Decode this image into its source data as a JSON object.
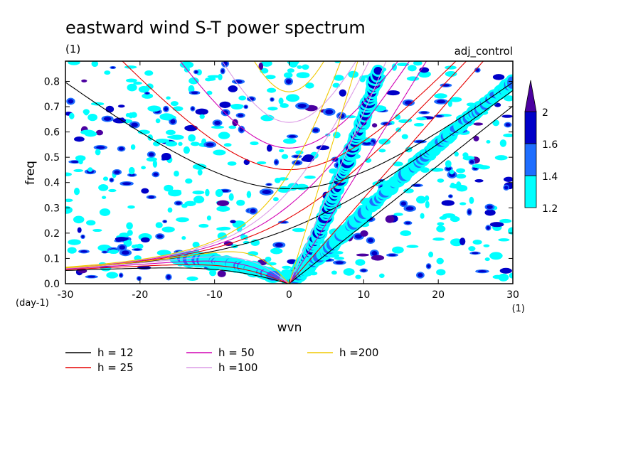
{
  "chart_data": {
    "type": "heatmap",
    "title": "eastward wind S-T power spectrum",
    "subtitle": "(1)",
    "experiment_label": "adj_control",
    "xlabel": "wvn",
    "ylabel": "freq",
    "x_unit": "(1)",
    "y_unit": "(day-1)",
    "xlim": [
      -30,
      30
    ],
    "ylim": [
      0,
      0.88
    ],
    "x_ticks": [
      -30,
      -20,
      -10,
      0,
      10,
      20,
      30
    ],
    "x_tick_labels": [
      "-30",
      "-20",
      "-10",
      "0",
      "10",
      "20",
      "30"
    ],
    "y_ticks": [
      0,
      0.1,
      0.2,
      0.3,
      0.4,
      0.5,
      0.6,
      0.7,
      0.8
    ],
    "y_tick_labels": [
      "0.0",
      "0.1",
      "0.2",
      "0.3",
      "0.4",
      "0.5",
      "0.6",
      "0.7",
      "0.8"
    ],
    "colorbar": {
      "levels": [
        1.2,
        1.4,
        1.6,
        2
      ],
      "level_labels": [
        "1.2",
        "1.4",
        "1.6",
        "2"
      ],
      "colors": [
        "#00ffff",
        "#1e6eff",
        "#0000c8",
        "#4b00a0"
      ]
    },
    "shaded_features": [
      {
        "name": "kelvin-band",
        "x": [
          0,
          2,
          4,
          6,
          8,
          10,
          12
        ],
        "y": [
          0.0,
          0.08,
          0.2,
          0.35,
          0.5,
          0.65,
          0.85
        ],
        "peak": 2
      },
      {
        "name": "mrg-band",
        "x": [
          0,
          5,
          10,
          15,
          20,
          25,
          30
        ],
        "y": [
          0.0,
          0.13,
          0.28,
          0.42,
          0.55,
          0.68,
          0.8
        ],
        "peak": 1.6
      },
      {
        "name": "rossby-band",
        "x": [
          -15,
          -10,
          -5,
          -2
        ],
        "y": [
          0.1,
          0.09,
          0.06,
          0.03
        ],
        "peak": 1.6
      }
    ],
    "dispersion_curves": [
      {
        "name": "h = 12",
        "color": "#000000"
      },
      {
        "name": "h = 25",
        "color": "#e60000"
      },
      {
        "name": "h = 50",
        "color": "#d200b4"
      },
      {
        "name": "h =100",
        "color": "#dc9be6"
      },
      {
        "name": "h =200",
        "color": "#f0c800"
      }
    ],
    "grid": false,
    "legend_placement": "bottom"
  }
}
